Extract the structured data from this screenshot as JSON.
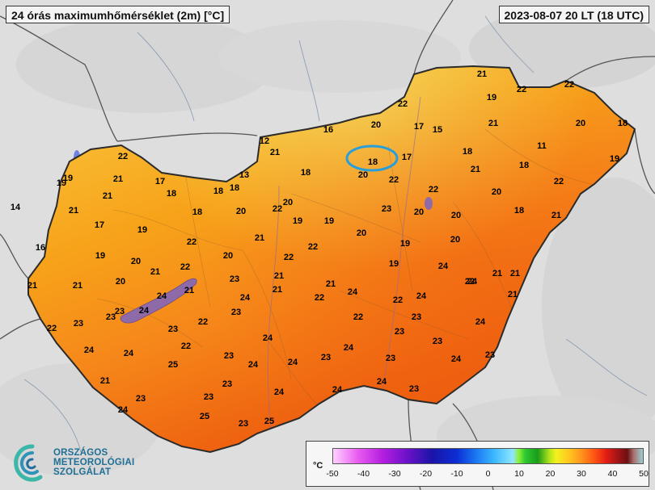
{
  "header": {
    "title": "24 órás maximumhőmérséklet (2m) [°C]",
    "timestamp": "2023-08-07 20 LT (18 UTC)"
  },
  "logo": {
    "line1": "ORSZÁGOS",
    "line2": "METEOROLÓGIAI",
    "line3": "SZOLGÁLAT"
  },
  "legend": {
    "unit": "°C",
    "ticks": [
      "-50",
      "-40",
      "-30",
      "-20",
      "-10",
      "0",
      "10",
      "20",
      "30",
      "40",
      "50"
    ]
  },
  "colors": {
    "cool": "#f6c03a",
    "mild": "#f9a418",
    "warm": "#f77c12",
    "hot": "#ef5a0c",
    "highlight_circle": "#2a9ed8",
    "lake": "#8f6aa8"
  },
  "station_values": [
    "21",
    "19",
    "22",
    "22",
    "22",
    "20",
    "17",
    "15",
    "21",
    "20",
    "18",
    "16",
    "12",
    "21",
    "18",
    "22",
    "11",
    "18",
    "17",
    "19",
    "19",
    "21",
    "21",
    "18",
    "19",
    "18",
    "17",
    "13",
    "18",
    "18",
    "20",
    "18",
    "22",
    "22",
    "20",
    "21",
    "22",
    "20",
    "14",
    "20",
    "22",
    "18",
    "18",
    "20",
    "19",
    "19",
    "21",
    "17",
    "20",
    "21",
    "23",
    "19",
    "19",
    "21",
    "20",
    "20",
    "22",
    "22",
    "16",
    "19",
    "20",
    "22",
    "24",
    "19",
    "20",
    "21",
    "21",
    "22",
    "21",
    "20",
    "21",
    "21",
    "22",
    "21",
    "24",
    "23",
    "24",
    "24",
    "21",
    "21",
    "21",
    "22",
    "24",
    "22",
    "21",
    "23",
    "23",
    "24",
    "24",
    "22",
    "23",
    "22",
    "23",
    "22",
    "23",
    "23",
    "24",
    "24",
    "23",
    "24",
    "24",
    "22",
    "23",
    "23",
    "23",
    "23",
    "24",
    "24",
    "24",
    "23",
    "24",
    "25",
    "21",
    "23",
    "24",
    "23",
    "23",
    "24",
    "24",
    "25",
    "23",
    "24",
    "23",
    "25"
  ]
}
